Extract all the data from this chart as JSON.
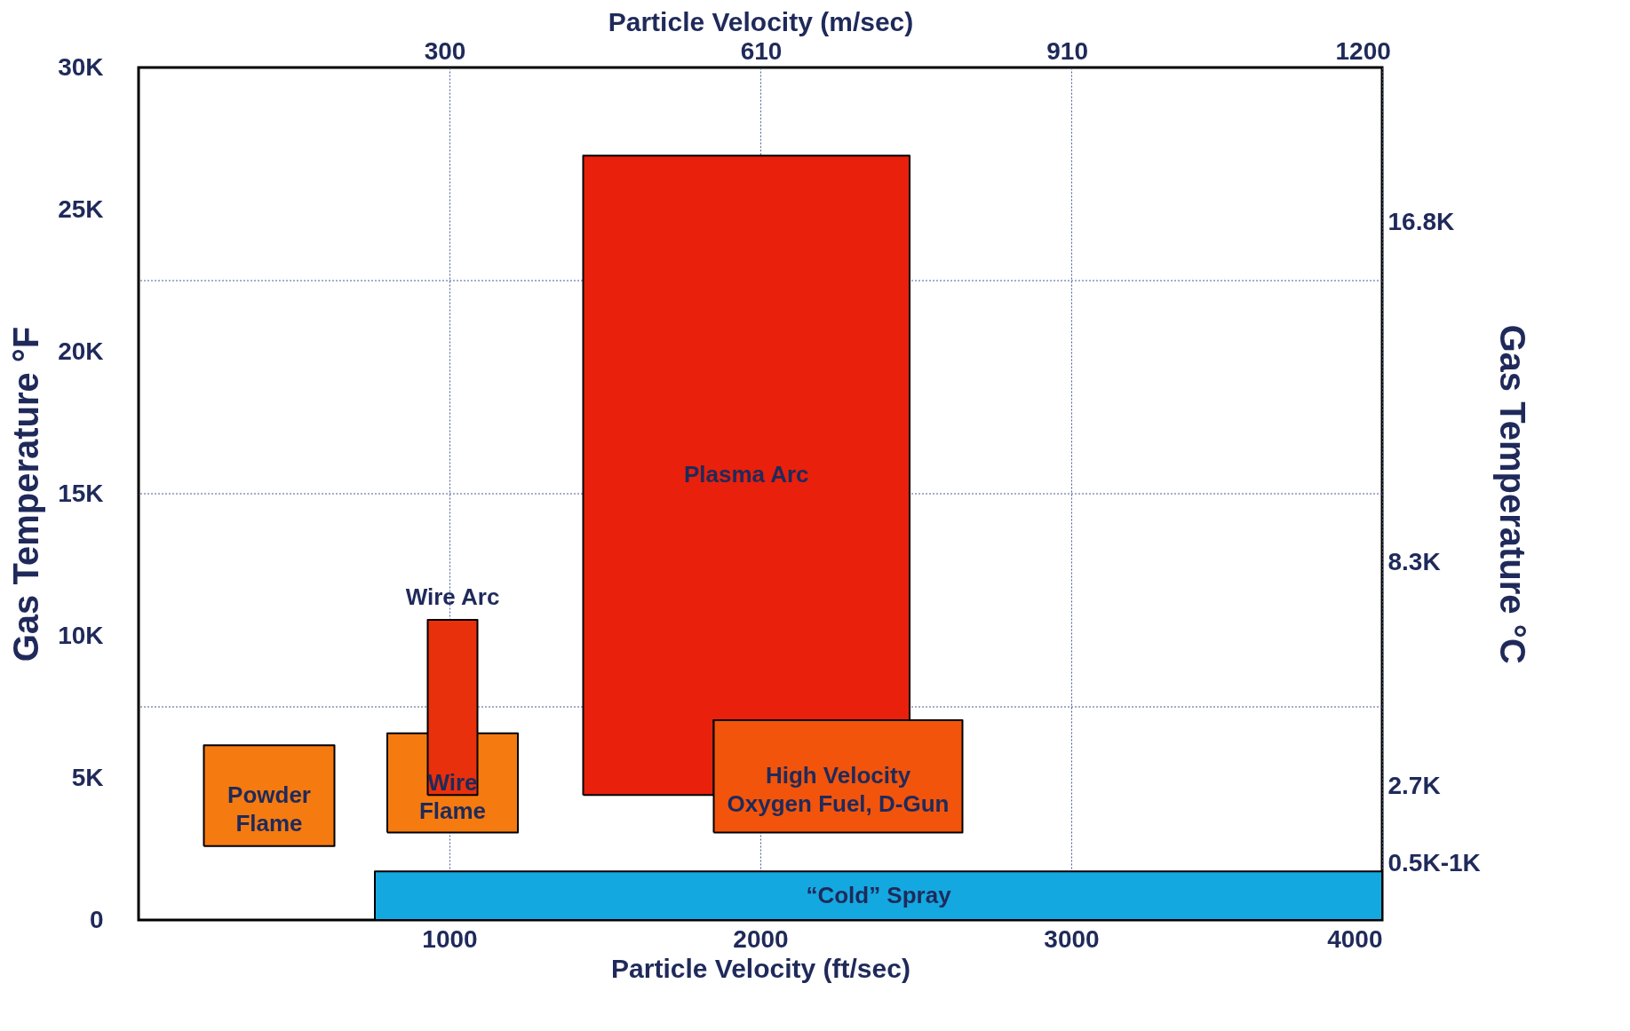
{
  "chart_data": {
    "type": "area",
    "marker": "none",
    "line_style": "solid",
    "xlabel": "Particle Velocity (ft/sec)",
    "x2label": "Particle Velocity (m/sec)",
    "ylabel": "Gas Temperature °F",
    "y2label": "Gas Temperature °C",
    "xlim": [
      0,
      4000
    ],
    "xticks": [
      1000,
      2000,
      3000,
      4000
    ],
    "x2lim": [
      0,
      1219
    ],
    "x2ticks": [
      300,
      610,
      910,
      1200
    ],
    "ylim": [
      0,
      30000
    ],
    "yticks": [
      0,
      {
        "value": 5000,
        "label": "5K"
      },
      {
        "value": 10000,
        "label": "10K"
      },
      {
        "value": 15000,
        "label": "15K"
      },
      {
        "value": 20000,
        "label": "20K"
      },
      {
        "value": 25000,
        "label": "25K"
      },
      {
        "value": 30000,
        "label": "30K"
      }
    ],
    "y2lim": [
      -650,
      20680
    ],
    "y2ticks": [
      {
        "value": 16800,
        "label": "16.8K"
      },
      {
        "value": 8300,
        "label": "8.3K"
      },
      {
        "value": 2700,
        "label": "2.7K"
      },
      {
        "value": 750,
        "label": "0.5K-1K"
      }
    ],
    "grid": "x",
    "ref_lines": [
      {
        "axis": "y",
        "value": 7500,
        "line_style": "dotted",
        "color": "#4a5a9a"
      },
      {
        "axis": "y",
        "value": 15000,
        "line_style": "dotted",
        "color": "#4a5a9a"
      },
      {
        "axis": "y",
        "value": 22500,
        "line_style": "dotted",
        "color": "#4a5a9a"
      }
    ],
    "series": [
      {
        "name": "Powder Flame",
        "color": "#f57a10",
        "x": [
          210,
          210,
          630,
          630,
          210
        ],
        "values": [
          2600,
          6150,
          6150,
          2600,
          2600
        ]
      },
      {
        "name": "Wire Flame",
        "color": "#f57a10",
        "x": [
          800,
          800,
          1220,
          1220,
          800
        ],
        "values": [
          3080,
          6570,
          6570,
          3080,
          3080
        ]
      },
      {
        "name": "Wire Arc",
        "color": "#e8300c",
        "x": [
          930,
          930,
          1090,
          1090,
          930
        ],
        "values": [
          4400,
          10560,
          10560,
          4400,
          4400
        ]
      },
      {
        "name": "Plasma Arc",
        "color": "#e8200c",
        "x": [
          1430,
          1430,
          2480,
          2480,
          1850,
          1850,
          1430
        ],
        "values": [
          4400,
          26900,
          26900,
          7030,
          7030,
          4400,
          4400
        ]
      },
      {
        "name": "High Velocity Oxygen Fuel, D-Gun",
        "color": "#f2540c",
        "x": [
          1850,
          1850,
          2650,
          2650,
          1850
        ],
        "values": [
          3080,
          7030,
          7030,
          3080,
          3080
        ]
      },
      {
        "name": "“Cold” Spray",
        "color": "#14a8e0",
        "x": [
          760,
          760,
          4000,
          4000,
          760
        ],
        "values": [
          0,
          1710,
          1710,
          0,
          0
        ]
      }
    ]
  }
}
